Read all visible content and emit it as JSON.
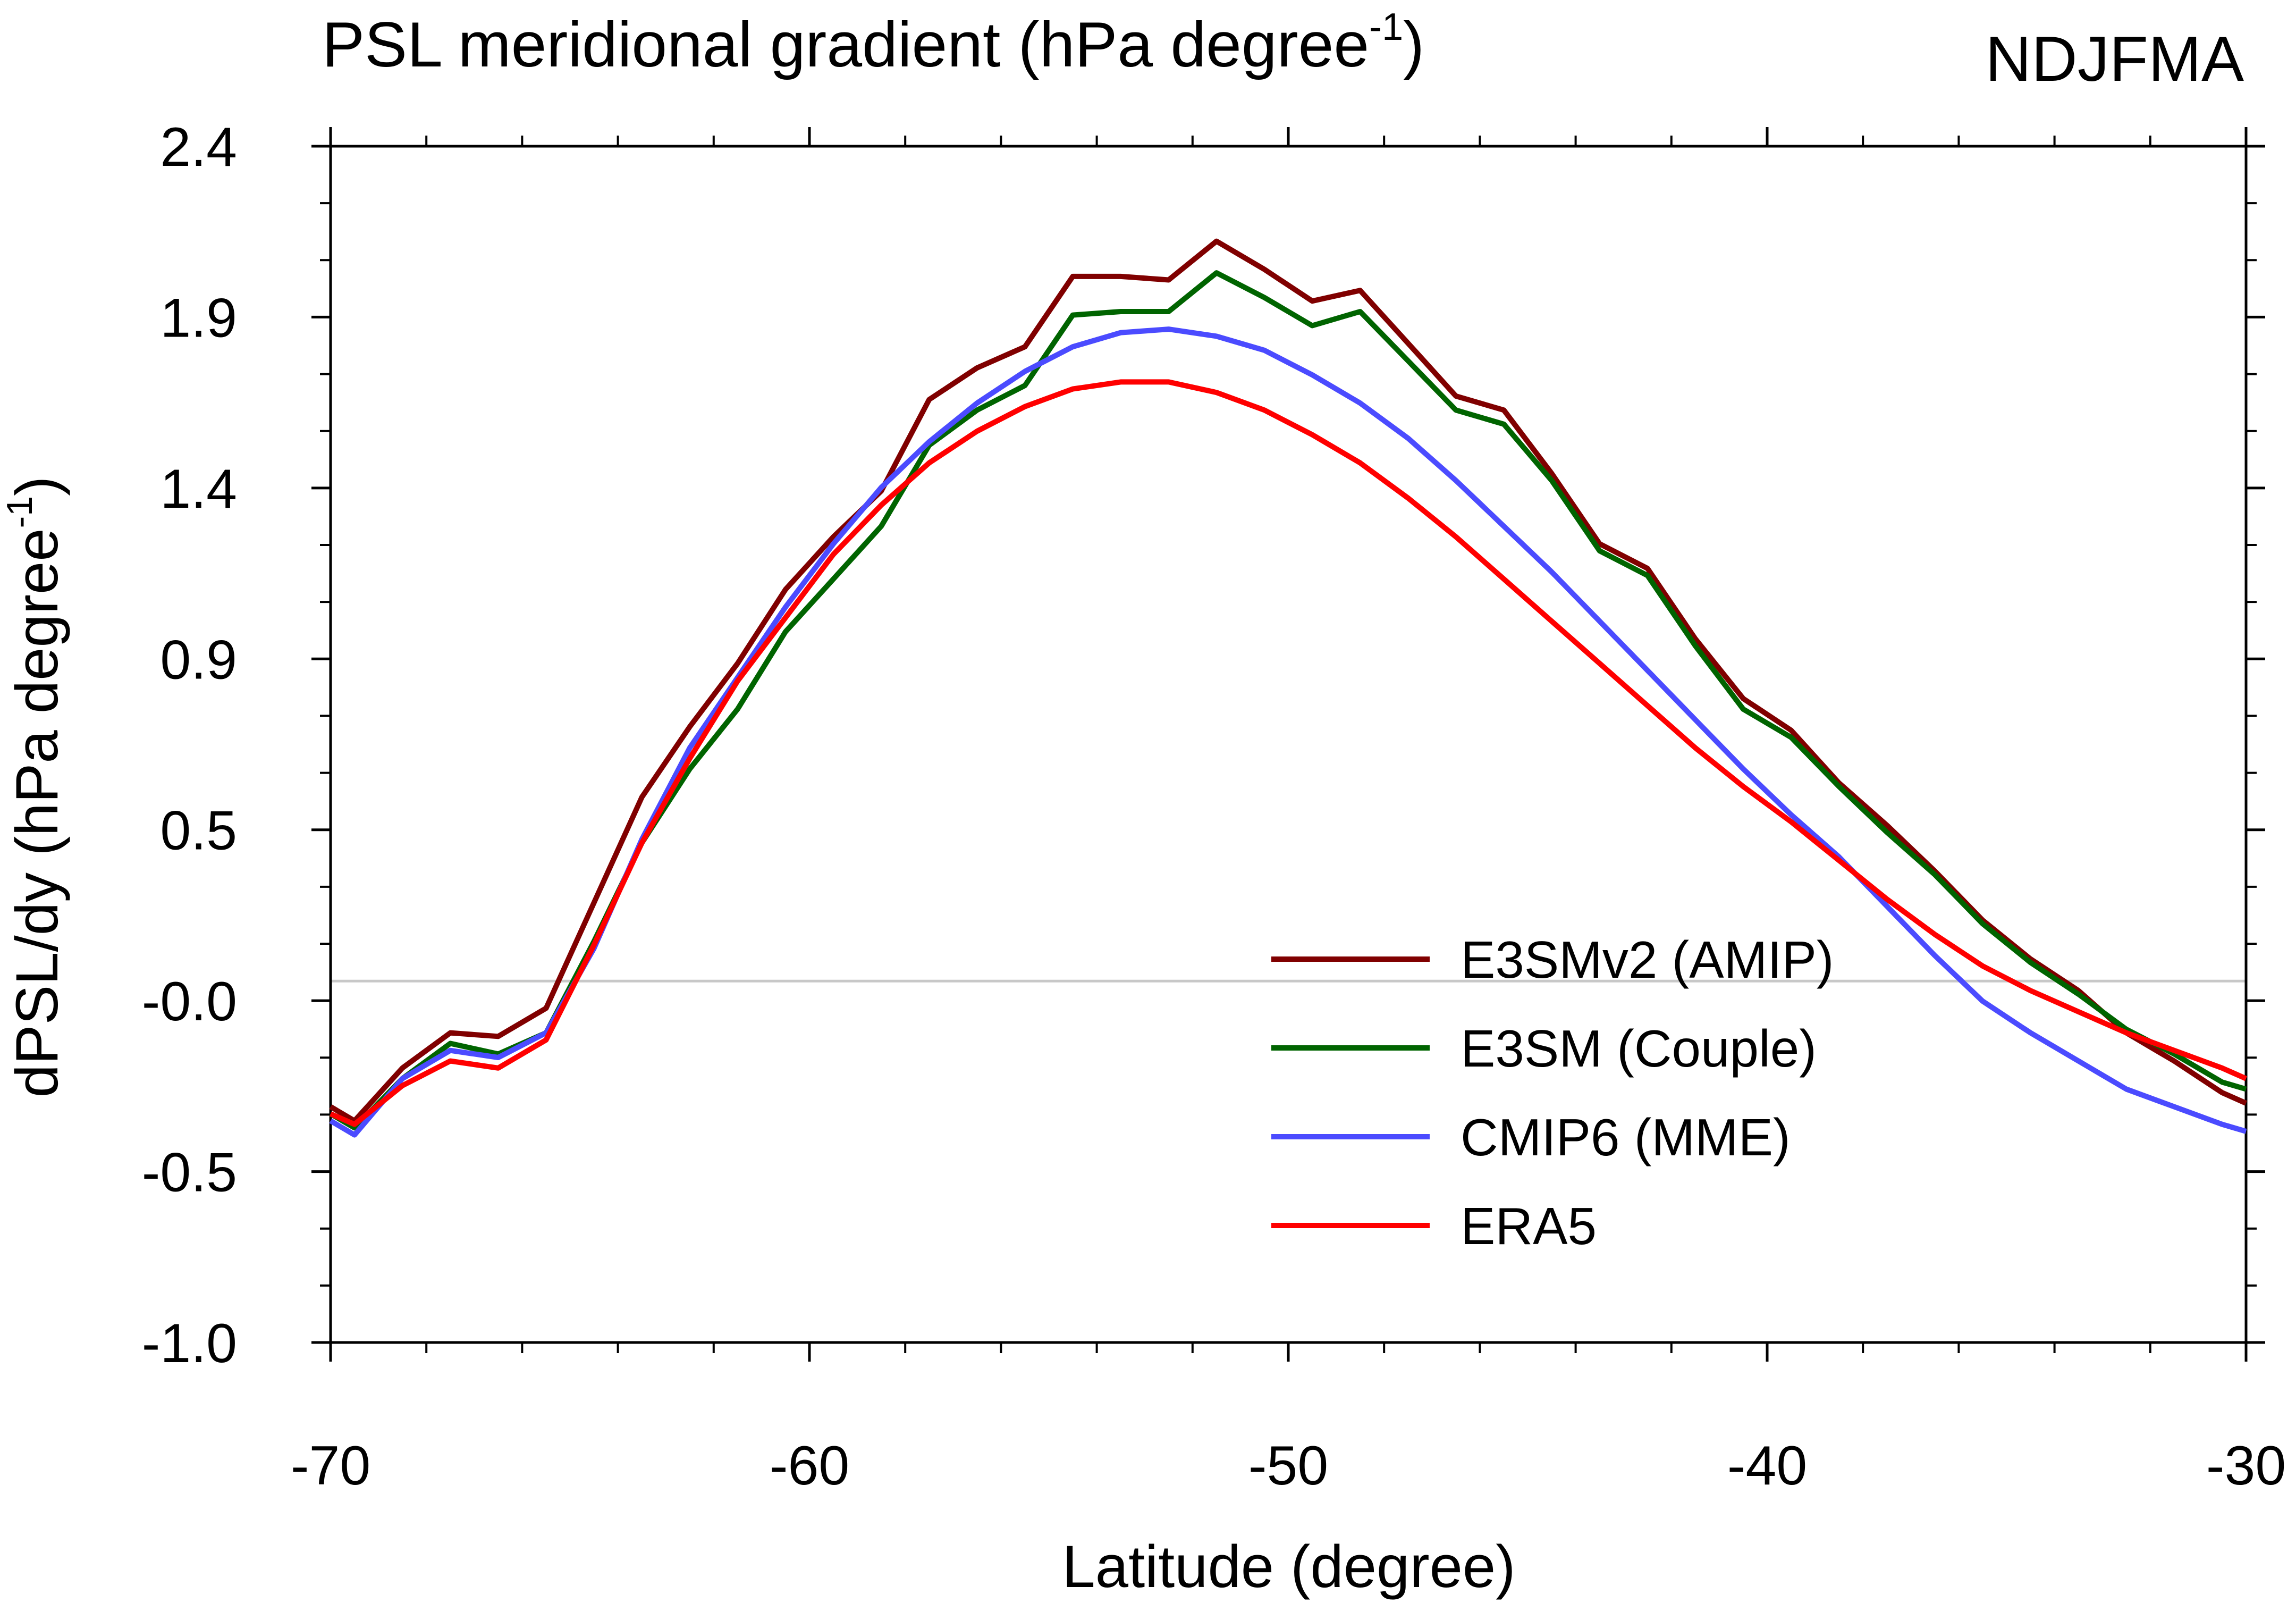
{
  "chart_data": {
    "type": "line",
    "title": "PSL meridional gradient (hPa degree",
    "title_superscript": "-1",
    "title_suffix": ")",
    "season": "NDJFMA",
    "xlabel": "Latitude (degree)",
    "ylabel": "dPSL/dy (hPa degree",
    "ylabel_superscript": "-1",
    "ylabel_suffix": ")",
    "xlim": [
      -70,
      -30
    ],
    "ylim": [
      -1.0,
      2.4
    ],
    "xticks": [
      -70,
      -60,
      -50,
      -40,
      -30
    ],
    "xtick_labels": [
      "-70",
      "-60",
      "-50",
      "-40",
      "-30"
    ],
    "yticks": [
      -1.0,
      -0.5,
      0.0,
      0.5,
      0.9,
      1.4,
      1.9,
      2.4
    ],
    "ytick_labels": [
      "-1.0",
      "-0.5",
      "-0.0",
      "0.5",
      "0.9",
      "1.4",
      "1.9",
      "2.4"
    ],
    "zero_line": true,
    "legend_position": "lower-right",
    "x": [
      -70,
      -69.5,
      -68.5,
      -67.5,
      -66.5,
      -65.5,
      -64.5,
      -63.5,
      -62.5,
      -61.5,
      -60.5,
      -59.5,
      -58.5,
      -57.5,
      -56.5,
      -55.5,
      -54.5,
      -53.5,
      -52.5,
      -51.5,
      -50.5,
      -49.5,
      -48.5,
      -47.5,
      -46.5,
      -45.5,
      -44.5,
      -43.5,
      -42.5,
      -41.5,
      -40.5,
      -39.5,
      -38.5,
      -37.5,
      -36.5,
      -35.5,
      -34.5,
      -33.5,
      -32.5,
      -31.5,
      -30.5,
      -30
    ],
    "series": [
      {
        "name": "E3SMv2 (AMIP)",
        "color": "#800000",
        "values": [
          -0.33,
          -0.37,
          -0.22,
          -0.12,
          -0.13,
          -0.05,
          0.25,
          0.55,
          0.75,
          0.93,
          1.14,
          1.29,
          1.42,
          1.68,
          1.77,
          1.83,
          2.03,
          2.03,
          2.02,
          2.13,
          2.05,
          1.96,
          1.99,
          1.84,
          1.69,
          1.65,
          1.47,
          1.27,
          1.2,
          1.0,
          0.83,
          0.74,
          0.59,
          0.47,
          0.34,
          0.2,
          0.09,
          0.0,
          -0.12,
          -0.2,
          -0.29,
          -0.32
        ]
      },
      {
        "name": "E3SM (Couple)",
        "color": "#006400",
        "values": [
          -0.35,
          -0.39,
          -0.25,
          -0.15,
          -0.18,
          -0.12,
          0.14,
          0.42,
          0.63,
          0.8,
          1.02,
          1.17,
          1.32,
          1.55,
          1.65,
          1.72,
          1.92,
          1.93,
          1.93,
          2.04,
          1.97,
          1.89,
          1.93,
          1.79,
          1.65,
          1.61,
          1.45,
          1.25,
          1.18,
          0.98,
          0.8,
          0.72,
          0.58,
          0.45,
          0.33,
          0.19,
          0.08,
          -0.01,
          -0.11,
          -0.18,
          -0.26,
          -0.28
        ]
      },
      {
        "name": "CMIP6 (MME)",
        "color": "#4b4bff",
        "values": [
          -0.37,
          -0.41,
          -0.25,
          -0.17,
          -0.19,
          -0.12,
          0.12,
          0.43,
          0.69,
          0.89,
          1.09,
          1.27,
          1.43,
          1.56,
          1.67,
          1.76,
          1.83,
          1.87,
          1.88,
          1.86,
          1.82,
          1.75,
          1.67,
          1.57,
          1.45,
          1.32,
          1.19,
          1.05,
          0.91,
          0.77,
          0.63,
          0.5,
          0.38,
          0.24,
          0.1,
          -0.03,
          -0.12,
          -0.2,
          -0.28,
          -0.33,
          -0.38,
          -0.4
        ]
      },
      {
        "name": "ERA5",
        "color": "#ff0000",
        "values": [
          -0.35,
          -0.38,
          -0.27,
          -0.2,
          -0.22,
          -0.14,
          0.13,
          0.42,
          0.66,
          0.88,
          1.06,
          1.24,
          1.38,
          1.5,
          1.59,
          1.66,
          1.71,
          1.73,
          1.73,
          1.7,
          1.65,
          1.58,
          1.5,
          1.4,
          1.29,
          1.17,
          1.05,
          0.93,
          0.81,
          0.69,
          0.58,
          0.48,
          0.37,
          0.26,
          0.16,
          0.07,
          0.0,
          -0.06,
          -0.12,
          -0.17,
          -0.22,
          -0.25
        ]
      }
    ]
  }
}
